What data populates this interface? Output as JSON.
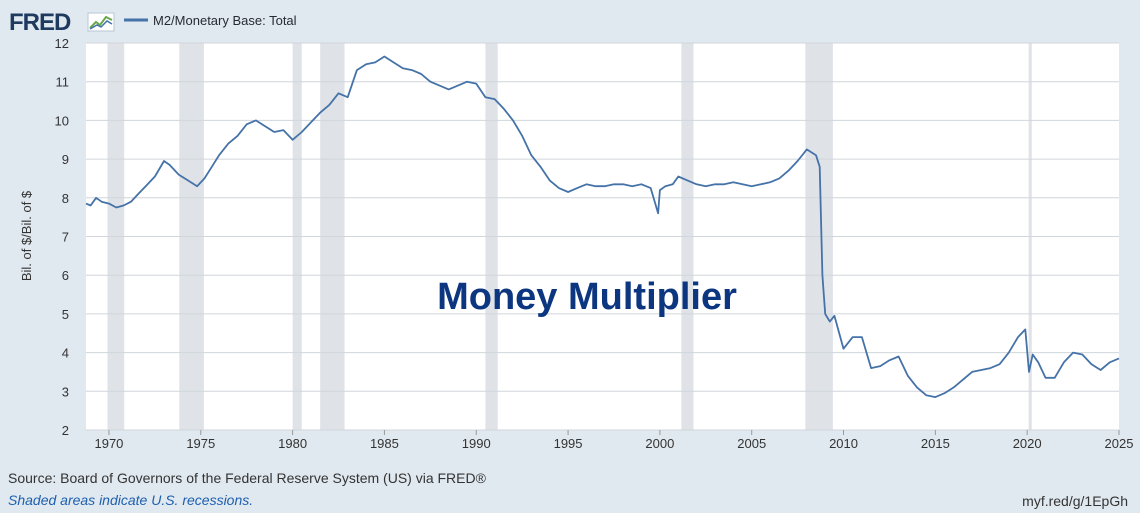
{
  "header": {
    "logo_text": "FRED",
    "legend_label": "M2/Monetary Base: Total",
    "logo_icon": "fred-chart-icon"
  },
  "footer": {
    "source": "Source: Board of Governors of the Federal Reserve System (US) via FRED®",
    "recessions_note": "Shaded areas indicate U.S. recessions.",
    "shortlink": "myf.red/g/1EpGh"
  },
  "colors": {
    "background": "#e1e9f0",
    "plot_background": "#ffffff",
    "line": "#4572a7",
    "recession": "#dfe3e8",
    "annotation": "#0d3680",
    "footnote": "#1d5fae"
  },
  "chart_data": {
    "type": "line",
    "title": "",
    "annotation": "Money Multiplier",
    "xlabel": "",
    "ylabel": "Bil. of $/Bil. of $",
    "xlim": [
      1968.75,
      2025.0
    ],
    "ylim": [
      2,
      12
    ],
    "x_ticks": [
      1970,
      1975,
      1980,
      1985,
      1990,
      1995,
      2000,
      2005,
      2010,
      2015,
      2020,
      2025
    ],
    "y_ticks": [
      2,
      3,
      4,
      5,
      6,
      7,
      8,
      9,
      10,
      11,
      12
    ],
    "grid": true,
    "legend_position": "top-left",
    "recessions": [
      [
        1969.92,
        1970.83
      ],
      [
        1973.83,
        1975.17
      ],
      [
        1980.0,
        1980.5
      ],
      [
        1981.5,
        1982.83
      ],
      [
        1990.5,
        1991.17
      ],
      [
        2001.17,
        2001.83
      ],
      [
        2007.92,
        2009.42
      ],
      [
        2020.08,
        2020.25
      ]
    ],
    "series": [
      {
        "name": "M2/Monetary Base: Total",
        "x": [
          1968.75,
          1969.0,
          1969.3,
          1969.6,
          1970.0,
          1970.4,
          1970.8,
          1971.2,
          1971.6,
          1972.0,
          1972.5,
          1973.0,
          1973.3,
          1973.8,
          1974.3,
          1974.8,
          1975.2,
          1975.6,
          1976.0,
          1976.5,
          1977.0,
          1977.5,
          1978.0,
          1978.5,
          1979.0,
          1979.5,
          1980.0,
          1980.5,
          1981.0,
          1981.5,
          1982.0,
          1982.5,
          1983.0,
          1983.5,
          1984.0,
          1984.5,
          1985.0,
          1985.5,
          1986.0,
          1986.5,
          1987.0,
          1987.5,
          1988.0,
          1988.5,
          1989.0,
          1989.5,
          1990.0,
          1990.5,
          1991.0,
          1991.5,
          1992.0,
          1992.5,
          1993.0,
          1993.5,
          1994.0,
          1994.5,
          1995.0,
          1995.5,
          1996.0,
          1996.5,
          1997.0,
          1997.5,
          1998.0,
          1998.5,
          1999.0,
          1999.5,
          1999.9,
          2000.0,
          2000.3,
          2000.7,
          2001.0,
          2001.5,
          2002.0,
          2002.5,
          2003.0,
          2003.5,
          2004.0,
          2004.5,
          2005.0,
          2005.5,
          2006.0,
          2006.5,
          2007.0,
          2007.5,
          2008.0,
          2008.5,
          2008.7,
          2008.85,
          2009.0,
          2009.25,
          2009.5,
          2010.0,
          2010.5,
          2011.0,
          2011.5,
          2012.0,
          2012.5,
          2013.0,
          2013.5,
          2014.0,
          2014.5,
          2015.0,
          2015.5,
          2016.0,
          2016.5,
          2017.0,
          2017.5,
          2018.0,
          2018.5,
          2019.0,
          2019.5,
          2019.9,
          2020.1,
          2020.3,
          2020.6,
          2021.0,
          2021.5,
          2022.0,
          2022.5,
          2023.0,
          2023.5,
          2024.0,
          2024.5,
          2025.0
        ],
        "values": [
          7.85,
          7.8,
          8.0,
          7.9,
          7.85,
          7.75,
          7.8,
          7.9,
          8.1,
          8.3,
          8.55,
          8.95,
          8.85,
          8.6,
          8.45,
          8.3,
          8.5,
          8.8,
          9.1,
          9.4,
          9.6,
          9.9,
          10.0,
          9.85,
          9.7,
          9.75,
          9.5,
          9.7,
          9.95,
          10.2,
          10.4,
          10.7,
          10.6,
          11.3,
          11.45,
          11.5,
          11.65,
          11.5,
          11.35,
          11.3,
          11.2,
          11.0,
          10.9,
          10.8,
          10.9,
          11.0,
          10.95,
          10.6,
          10.55,
          10.3,
          10.0,
          9.6,
          9.1,
          8.8,
          8.45,
          8.25,
          8.15,
          8.25,
          8.35,
          8.3,
          8.3,
          8.35,
          8.35,
          8.3,
          8.35,
          8.25,
          7.6,
          8.2,
          8.3,
          8.35,
          8.55,
          8.45,
          8.35,
          8.3,
          8.35,
          8.35,
          8.4,
          8.35,
          8.3,
          8.35,
          8.4,
          8.5,
          8.7,
          8.95,
          9.25,
          9.1,
          8.8,
          6.0,
          5.0,
          4.8,
          4.95,
          4.1,
          4.4,
          4.4,
          3.6,
          3.65,
          3.8,
          3.9,
          3.4,
          3.1,
          2.9,
          2.85,
          2.95,
          3.1,
          3.3,
          3.5,
          3.55,
          3.6,
          3.7,
          4.0,
          4.4,
          4.6,
          3.5,
          3.95,
          3.75,
          3.35,
          3.35,
          3.75,
          4.0,
          3.95,
          3.7,
          3.55,
          3.75,
          3.85
        ]
      }
    ]
  }
}
